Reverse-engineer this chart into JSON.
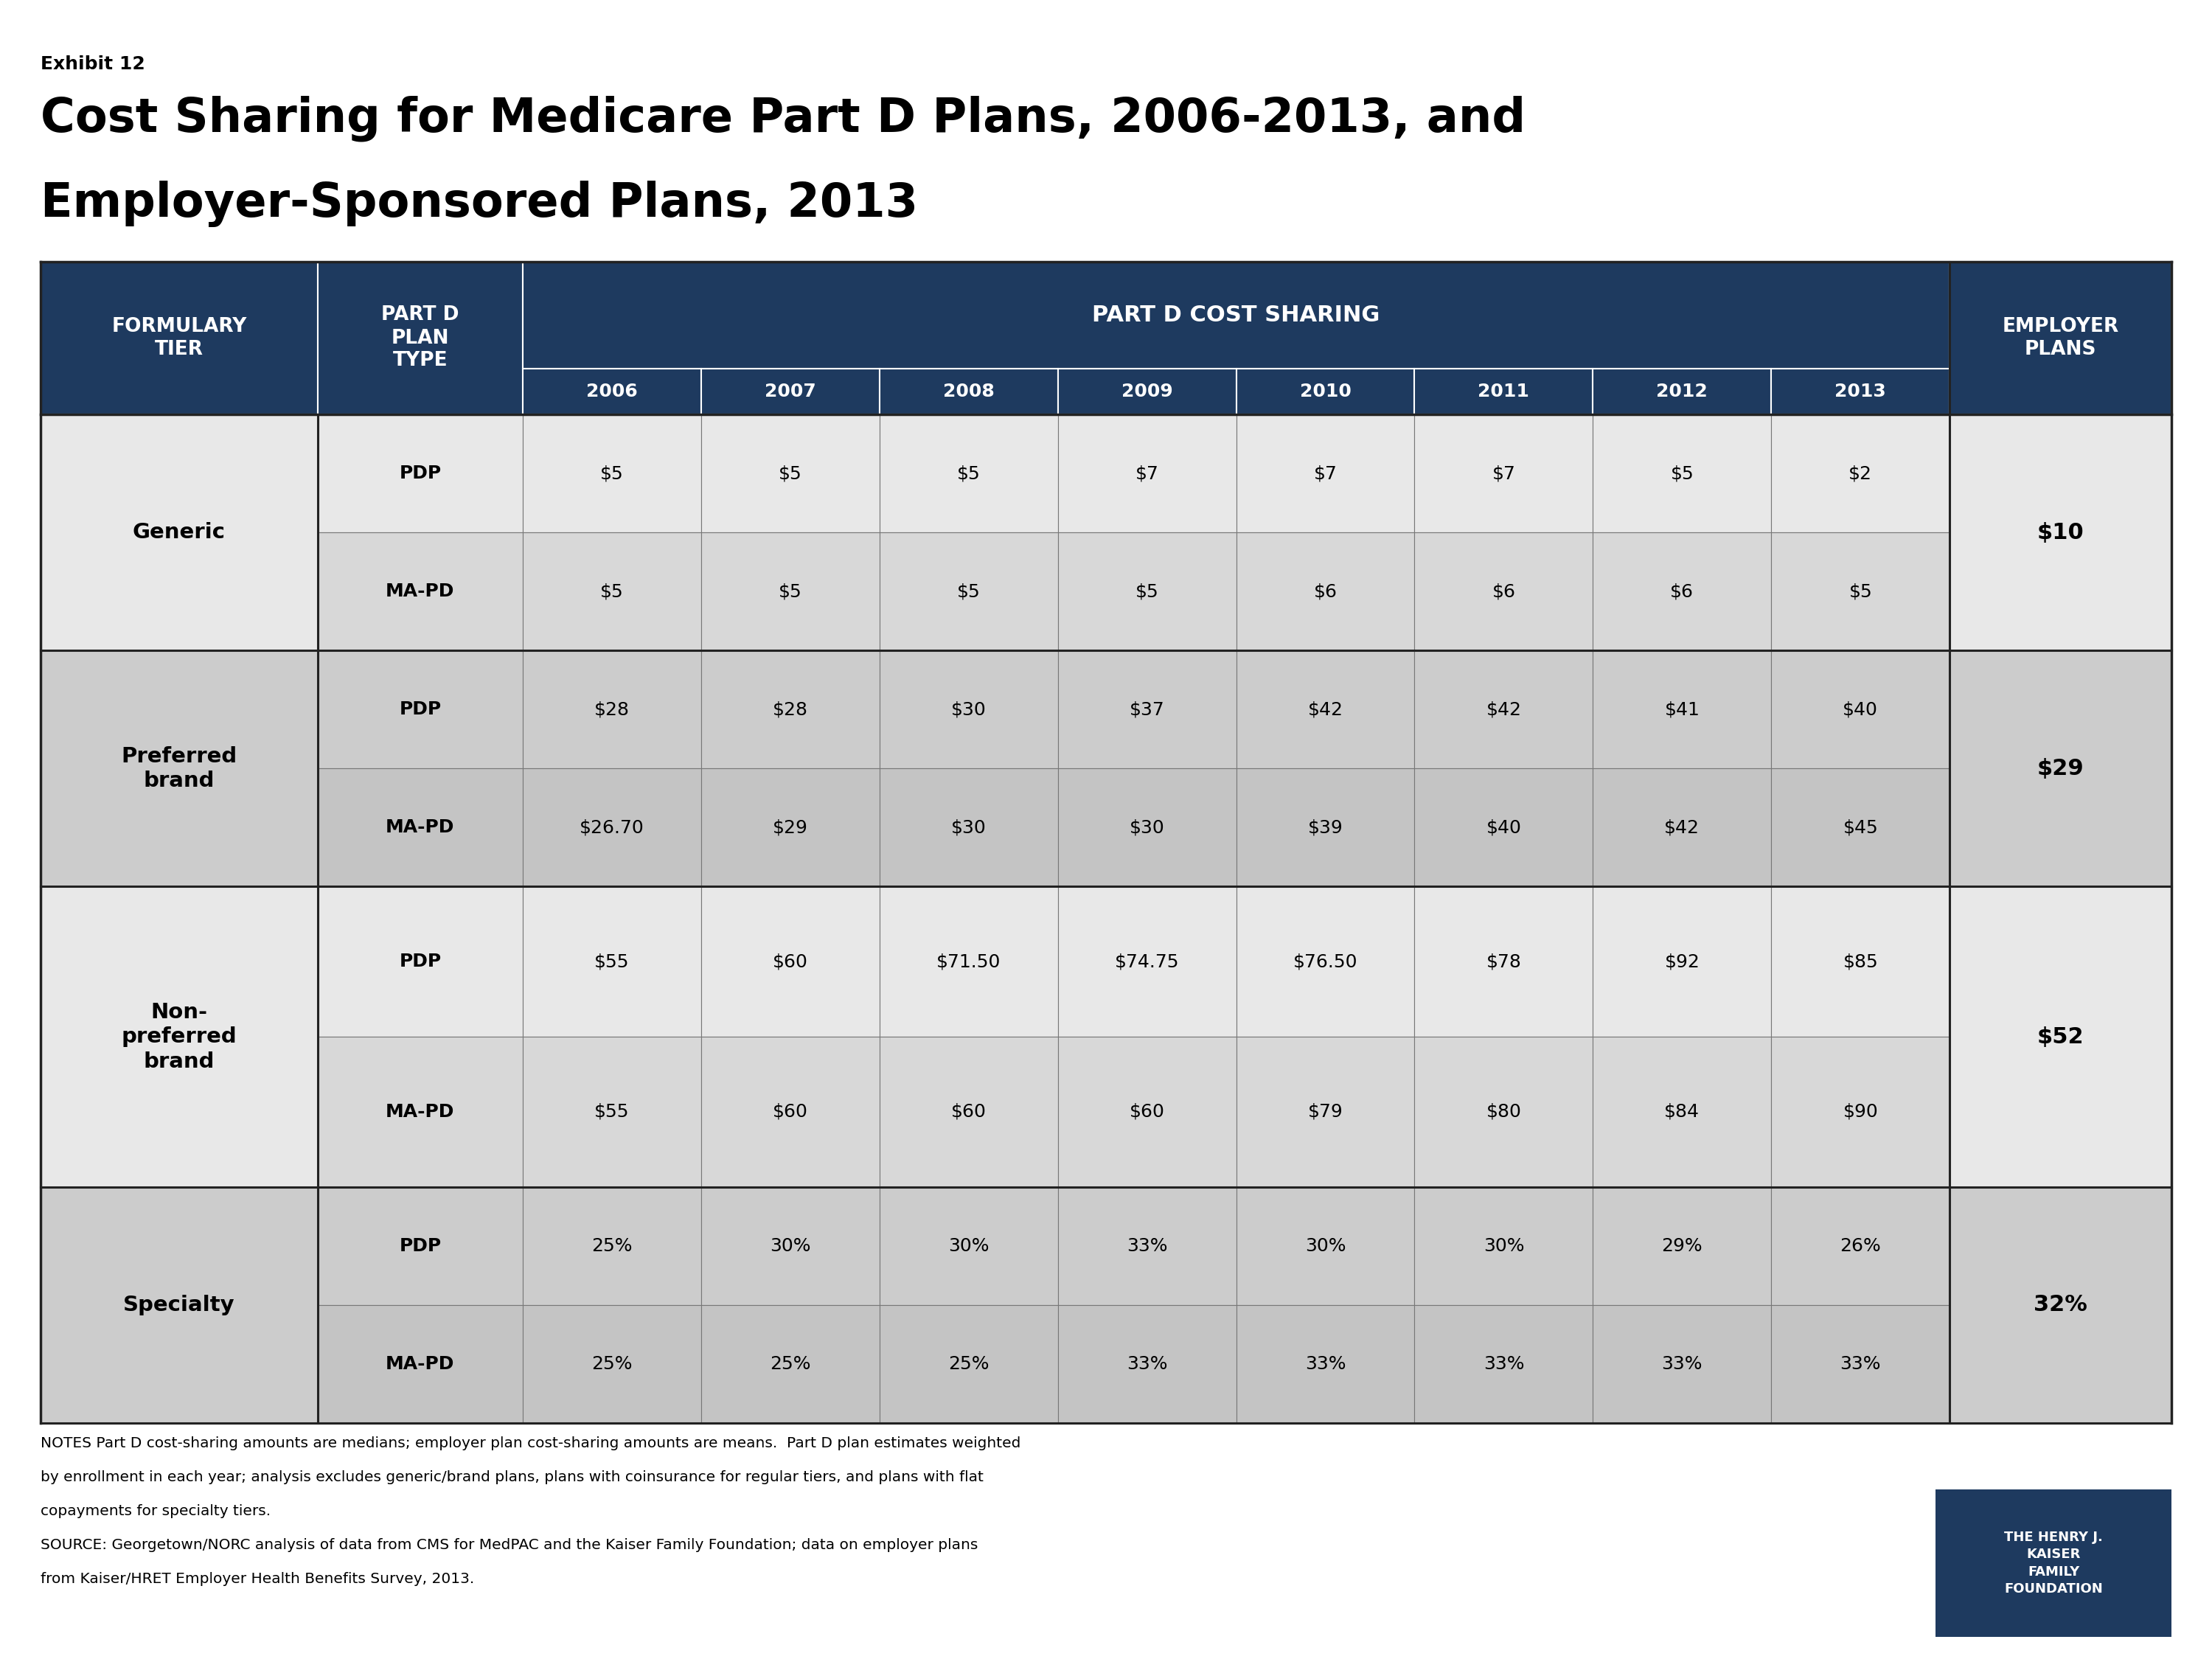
{
  "exhibit_label": "Exhibit 12",
  "title_line1": "Cost Sharing for Medicare Part D Plans, 2006-2013, and",
  "title_line2": "Employer-Sponsored Plans, 2013",
  "header_bg": "#1e3a5f",
  "header_text_color": "#ffffff",
  "row_bg_light": "#e8e8e8",
  "row_bg_dark": "#c8c8c8",
  "border_color": "#777777",
  "thick_border_color": "#222222",
  "col_header_formulary": "FORMULARY\nTIER",
  "col_header_plan_type": "PART D\nPLAN\nTYPE",
  "col_header_cost_sharing": "PART D COST SHARING",
  "col_header_employer": "EMPLOYER\nPLANS",
  "years": [
    "2006",
    "2007",
    "2008",
    "2009",
    "2010",
    "2011",
    "2012",
    "2013"
  ],
  "employer_year": "2013",
  "rows": [
    {
      "tier": "Generic",
      "pdp": [
        "$5",
        "$5",
        "$5",
        "$7",
        "$7",
        "$7",
        "$5",
        "$2"
      ],
      "mapd": [
        "$5",
        "$5",
        "$5",
        "$5",
        "$6",
        "$6",
        "$6",
        "$5"
      ],
      "employer": "$10",
      "bg_light": "#e8e8e8",
      "bg_dark": "#d8d8d8"
    },
    {
      "tier": "Preferred\nbrand",
      "pdp": [
        "$28",
        "$28",
        "$30",
        "$37",
        "$42",
        "$42",
        "$41",
        "$40"
      ],
      "mapd": [
        "$26.70",
        "$29",
        "$30",
        "$30",
        "$39",
        "$40",
        "$42",
        "$45"
      ],
      "employer": "$29",
      "bg_light": "#cccccc",
      "bg_dark": "#c4c4c4"
    },
    {
      "tier": "Non-\npreferred\nbrand",
      "pdp": [
        "$55",
        "$60",
        "$71.50",
        "$74.75",
        "$76.50",
        "$78",
        "$92",
        "$85"
      ],
      "mapd": [
        "$55",
        "$60",
        "$60",
        "$60",
        "$79",
        "$80",
        "$84",
        "$90"
      ],
      "employer": "$52",
      "bg_light": "#e8e8e8",
      "bg_dark": "#d8d8d8"
    },
    {
      "tier": "Specialty",
      "pdp": [
        "25%",
        "30%",
        "30%",
        "33%",
        "30%",
        "30%",
        "29%",
        "26%"
      ],
      "mapd": [
        "25%",
        "25%",
        "25%",
        "33%",
        "33%",
        "33%",
        "33%",
        "33%"
      ],
      "employer": "32%",
      "bg_light": "#cccccc",
      "bg_dark": "#c4c4c4"
    }
  ],
  "notes_line1": "NOTES Part D cost-sharing amounts are medians; employer plan cost-sharing amounts are means.  Part D plan estimates weighted",
  "notes_line2": "by enrollment in each year; analysis excludes generic/brand plans, plans with coinsurance for regular tiers, and plans with flat",
  "notes_line3": "copayments for specialty tiers.",
  "source_line1": "SOURCE: Georgetown/NORC analysis of data from CMS for MedPAC and the Kaiser Family Foundation; data on employer plans",
  "source_line2": "from Kaiser/HRET Employer Health Benefits Survey, 2013.",
  "kaiser_logo_text": "THE HENRY J.\nKAISER\nFAMILY\nFOUNDATION",
  "kaiser_bg": "#1e3a5f"
}
